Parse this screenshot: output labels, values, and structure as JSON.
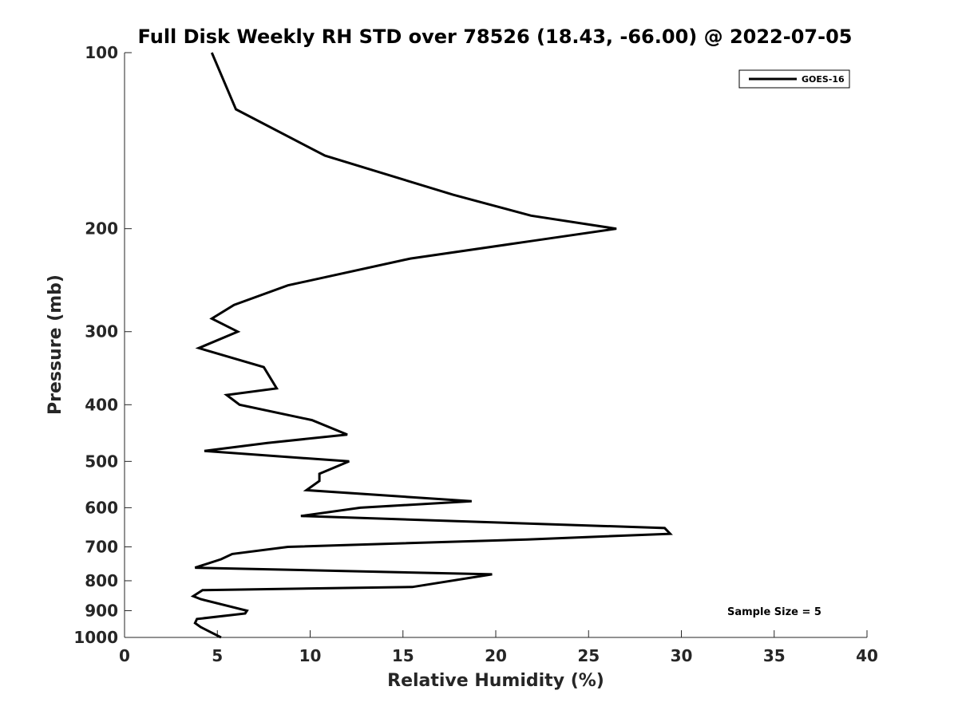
{
  "chart_data": {
    "type": "line",
    "title": "Full Disk Weekly RH STD over 78526 (18.43, -66.00) @ 2022-07-05",
    "xlabel": "Relative Humidity (%)",
    "ylabel": "Pressure (mb)",
    "xlim": [
      0,
      40
    ],
    "ylim": [
      100,
      1000
    ],
    "y_scale": "log",
    "y_reversed": true,
    "x_ticks": [
      0,
      5,
      10,
      15,
      20,
      25,
      30,
      35,
      40
    ],
    "y_ticks": [
      100,
      200,
      300,
      400,
      500,
      600,
      700,
      800,
      900,
      1000
    ],
    "grid": false,
    "legend_position": "top-right",
    "annotation": "Sample Size = 5",
    "series": [
      {
        "name": "GOES-16",
        "color": "#000000",
        "points": [
          [
            4.7,
            100
          ],
          [
            6.0,
            125
          ],
          [
            10.8,
            150
          ],
          [
            17.7,
            175
          ],
          [
            21.9,
            190
          ],
          [
            26.5,
            200
          ],
          [
            21.9,
            210
          ],
          [
            15.4,
            225
          ],
          [
            8.8,
            250
          ],
          [
            5.9,
            270
          ],
          [
            4.7,
            285
          ],
          [
            6.1,
            300
          ],
          [
            4.0,
            320
          ],
          [
            7.5,
            345
          ],
          [
            8.2,
            375
          ],
          [
            5.5,
            385
          ],
          [
            6.2,
            400
          ],
          [
            10.1,
            425
          ],
          [
            12.0,
            450
          ],
          [
            7.7,
            465
          ],
          [
            4.3,
            480
          ],
          [
            12.1,
            500
          ],
          [
            10.5,
            525
          ],
          [
            10.5,
            540
          ],
          [
            9.8,
            560
          ],
          [
            18.7,
            585
          ],
          [
            12.7,
            600
          ],
          [
            9.5,
            620
          ],
          [
            29.1,
            650
          ],
          [
            29.4,
            665
          ],
          [
            21.7,
            680
          ],
          [
            8.8,
            700
          ],
          [
            5.8,
            720
          ],
          [
            5.2,
            735
          ],
          [
            3.8,
            760
          ],
          [
            19.8,
            780
          ],
          [
            15.5,
            820
          ],
          [
            4.2,
            830
          ],
          [
            3.7,
            850
          ],
          [
            4.1,
            860
          ],
          [
            6.6,
            900
          ],
          [
            6.5,
            910
          ],
          [
            3.9,
            930
          ],
          [
            3.8,
            945
          ],
          [
            4.1,
            960
          ],
          [
            5.2,
            1000
          ]
        ]
      }
    ]
  }
}
